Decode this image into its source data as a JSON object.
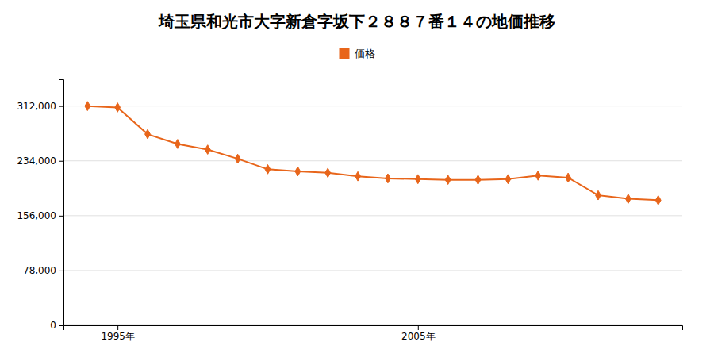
{
  "chart_data": {
    "type": "line",
    "title": "埼玉県和光市大字新倉字坂下２８８７番１４の地価推移",
    "x": [
      1994,
      1995,
      1996,
      1997,
      1998,
      1999,
      2000,
      2001,
      2002,
      2003,
      2004,
      2005,
      2006,
      2007,
      2008,
      2009,
      2010,
      2011,
      2012,
      2013
    ],
    "series": [
      {
        "name": "価格",
        "color": "#e8651a",
        "marker": "diamond",
        "values": [
          312000,
          310000,
          272000,
          258000,
          250000,
          237000,
          222000,
          219000,
          217000,
          212000,
          209000,
          208000,
          207000,
          207000,
          208000,
          213000,
          210000,
          185000,
          180000,
          178000
        ]
      }
    ],
    "xlim": [
      1993.2,
      2013.8
    ],
    "xticks": [
      {
        "value": 1995,
        "label": "1995年"
      },
      {
        "value": 2005,
        "label": "2005年"
      }
    ],
    "ylim": [
      0,
      350000
    ],
    "yticks": [
      0,
      {
        "value": 78000,
        "label": "78,000"
      },
      {
        "value": 156000,
        "label": "156,000"
      },
      {
        "value": 234000,
        "label": "234,000"
      },
      {
        "value": 312000,
        "label": "312,000"
      }
    ],
    "grid": true,
    "legend": "top"
  }
}
